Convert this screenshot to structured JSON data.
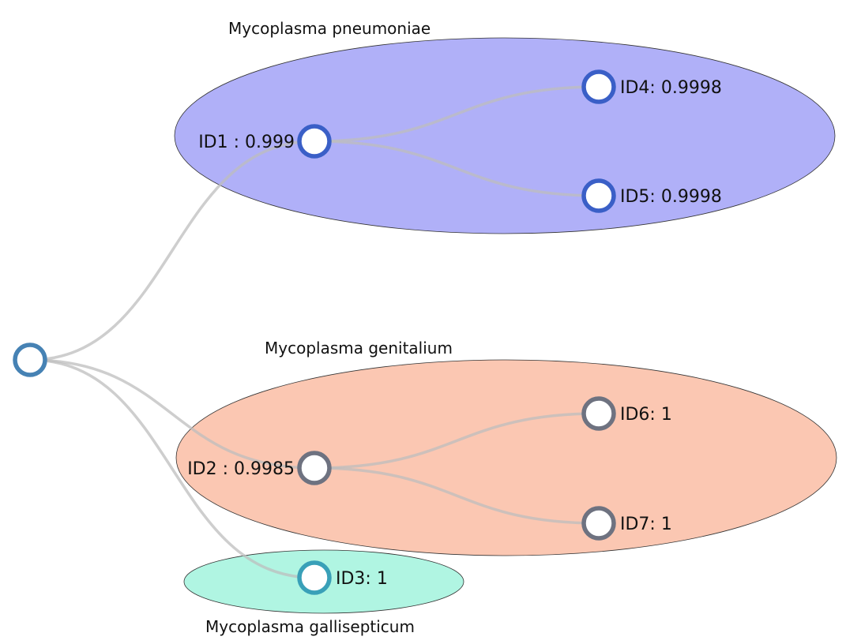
{
  "groups": [
    {
      "id": "pneumoniae",
      "label": "Mycoplasma pneumoniae",
      "fill": "#b0b0f8"
    },
    {
      "id": "genitalium",
      "label": "Mycoplasma genitalium",
      "fill": "#fbc7b2"
    },
    {
      "id": "gallisepticum",
      "label": "Mycoplasma gallisepticum",
      "fill": "#b0f5e2"
    }
  ],
  "nodes": [
    {
      "id": "root",
      "label": "",
      "color": "#4682b4"
    },
    {
      "id": "id1",
      "label": "ID1 : 0.999",
      "color": "#3a5fc7"
    },
    {
      "id": "id4",
      "label": "ID4: 0.9998",
      "color": "#3a5fc7"
    },
    {
      "id": "id5",
      "label": "ID5: 0.9998",
      "color": "#3a5fc7"
    },
    {
      "id": "id2",
      "label": "ID2 : 0.9985",
      "color": "#6e7280"
    },
    {
      "id": "id6",
      "label": "ID6: 1",
      "color": "#6e7280"
    },
    {
      "id": "id7",
      "label": "ID7: 1",
      "color": "#6e7280"
    },
    {
      "id": "id3",
      "label": "ID3: 1",
      "color": "#39a0b8"
    }
  ],
  "edges": [
    {
      "from": "root",
      "to": "id1"
    },
    {
      "from": "root",
      "to": "id2"
    },
    {
      "from": "root",
      "to": "id3"
    },
    {
      "from": "id1",
      "to": "id4"
    },
    {
      "from": "id1",
      "to": "id5"
    },
    {
      "from": "id2",
      "to": "id6"
    },
    {
      "from": "id2",
      "to": "id7"
    }
  ]
}
